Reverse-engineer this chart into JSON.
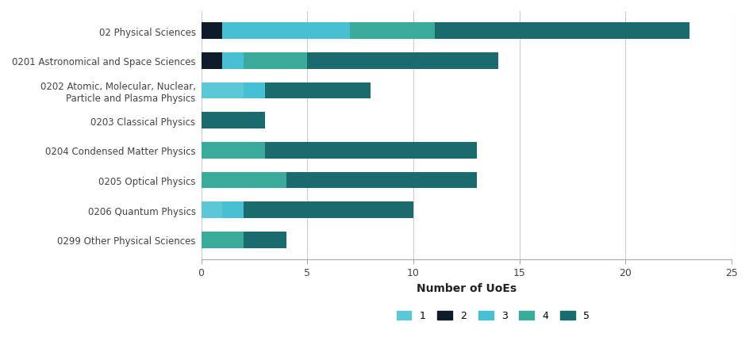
{
  "categories": [
    "02 Physical Sciences",
    "0201 Astronomical and Space Sciences",
    "0202 Atomic, Molecular, Nuclear,\nParticle and Plasma Physics",
    "0203 Classical Physics",
    "0204 Condensed Matter Physics",
    "0205 Optical Physics",
    "0206 Quantum Physics",
    "0299 Other Physical Sciences"
  ],
  "rating1": [
    0,
    0,
    2,
    0,
    0,
    0,
    1,
    0
  ],
  "rating2": [
    1,
    1,
    0,
    0,
    0,
    0,
    0,
    0
  ],
  "rating3": [
    6,
    1,
    1,
    0,
    0,
    0,
    1,
    0
  ],
  "rating4": [
    4,
    3,
    0,
    0,
    3,
    4,
    0,
    2
  ],
  "rating5": [
    12,
    9,
    5,
    3,
    10,
    9,
    8,
    2
  ],
  "color1": "#5bc8d5",
  "color2": "#0d1b2a",
  "color3": "#47c0d4",
  "color4": "#3aab9a",
  "color5": "#1a6b6e",
  "xlabel": "Number of UoEs",
  "xlim": [
    0,
    25
  ],
  "xticks": [
    0,
    5,
    10,
    15,
    20,
    25
  ],
  "legend_labels": [
    "1",
    "2",
    "3",
    "4",
    "5"
  ],
  "background_color": "#ffffff",
  "figsize": [
    9.45,
    4.6
  ],
  "dpi": 100
}
